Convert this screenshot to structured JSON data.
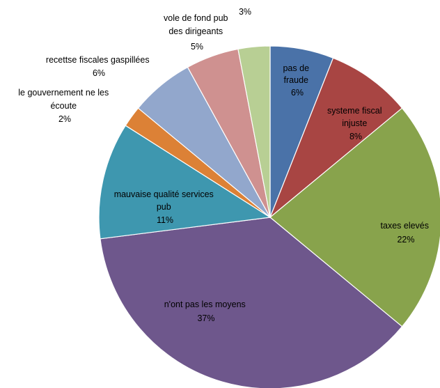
{
  "chart_data": {
    "type": "pie",
    "title": "",
    "slices": [
      {
        "label": "pas de fraude",
        "value": 6,
        "pct_label": "6%",
        "color": "#4a72a8"
      },
      {
        "label": "systeme fiscal injuste",
        "value": 8,
        "pct_label": "8%",
        "color": "#a84543"
      },
      {
        "label": "taxes elevés",
        "value": 22,
        "pct_label": "22%",
        "color": "#88a34c"
      },
      {
        "label": "n'ont pas les moyens",
        "value": 37,
        "pct_label": "37%",
        "color": "#6e578c"
      },
      {
        "label": "mauvaise qualité services pub",
        "value": 11,
        "pct_label": "11%",
        "color": "#3e97af"
      },
      {
        "label": "le gouvernement ne les écoute",
        "value": 2,
        "pct_label": "2%",
        "color": "#dc8136"
      },
      {
        "label": "recettse fiscales gaspillées",
        "value": 6,
        "pct_label": "6%",
        "color": "#92a7cc"
      },
      {
        "label": "vole de fond pub des dirigeants",
        "value": 5,
        "pct_label": "5%",
        "color": "#cf9190"
      },
      {
        "label": "",
        "value": 3,
        "pct_label": "3%",
        "color": "#b8cf94"
      }
    ]
  }
}
